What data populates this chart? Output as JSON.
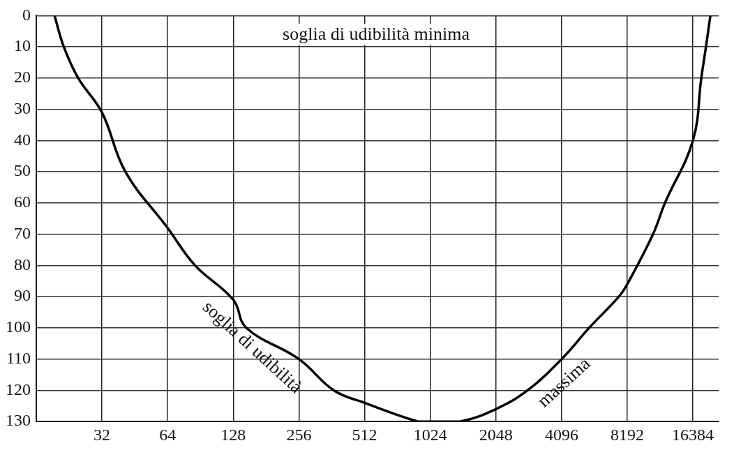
{
  "chart_data": {
    "type": "line",
    "log": "x",
    "grid": true,
    "legend": false,
    "marker": "none",
    "line_style": "solid",
    "xlim": [
      16,
      21500
    ],
    "xticks": [
      32,
      64,
      128,
      256,
      512,
      1024,
      2048,
      4096,
      8192,
      16384
    ],
    "ylim": [
      130,
      0
    ],
    "yticks": [
      0,
      10,
      20,
      30,
      40,
      50,
      60,
      70,
      80,
      90,
      100,
      110,
      120,
      130
    ],
    "series": [
      {
        "color": "#000000",
        "x": [
          19.4,
          21.4,
          24.9,
          32,
          41,
          64,
          85.5,
          128,
          147,
          256,
          370,
          512,
          900,
          1024,
          1400,
          2048,
          2860,
          4096,
          5480,
          7500,
          8192,
          10750,
          12200,
          16384,
          17900,
          18800,
          19700
        ],
        "values": [
          0,
          10,
          20,
          31,
          50,
          68,
          80,
          91,
          100,
          110,
          120,
          124,
          130,
          130,
          130,
          126,
          120,
          110,
          100,
          90,
          86,
          70,
          60,
          40,
          20,
          10,
          0
        ]
      }
    ],
    "annotations": [
      "soglia di udibilità minima",
      "soglia di udibilità",
      "massima"
    ]
  }
}
